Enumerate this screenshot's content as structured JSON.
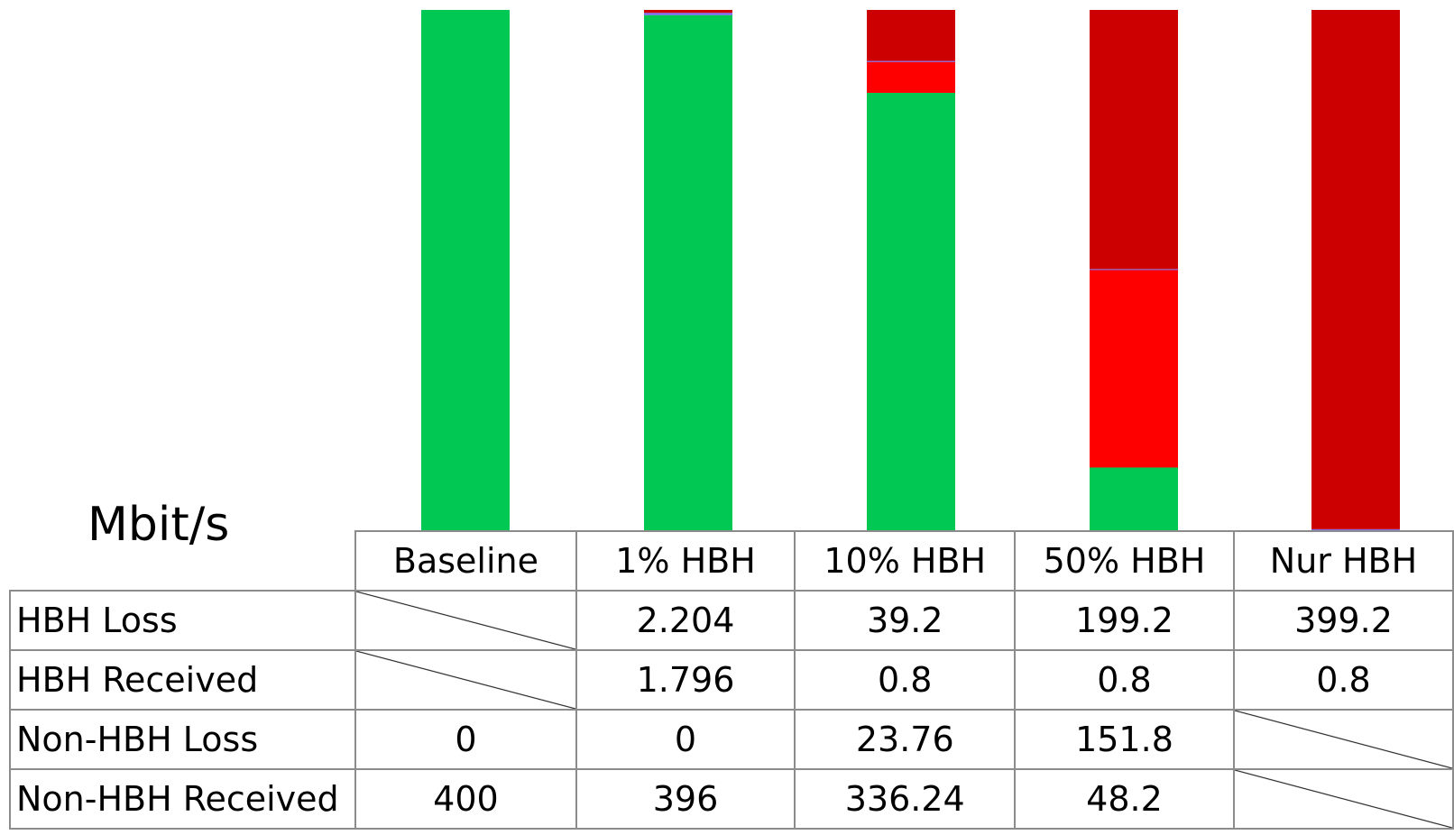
{
  "unit_label": "Mbit/s",
  "chart_data": {
    "type": "bar",
    "stacked": true,
    "normalized": true,
    "categories": [
      "Baseline",
      "1% HBH",
      "10% HBH",
      "50% HBH",
      "Nur HBH"
    ],
    "series": [
      {
        "name": "Non-HBH Received",
        "values": [
          400,
          396,
          336.24,
          48.2,
          0
        ],
        "color": "#00c853"
      },
      {
        "name": "Non-HBH Loss",
        "values": [
          0,
          0,
          23.76,
          151.8,
          0
        ],
        "color": "#2e6fc4"
      },
      {
        "name": "HBH Received",
        "values": [
          0,
          1.796,
          0.8,
          0.8,
          0.8
        ],
        "color": "#9b59b6"
      },
      {
        "name": "HBH Loss",
        "values": [
          0,
          2.204,
          39.2,
          199.2,
          399.2
        ],
        "color": "#cc0000"
      }
    ],
    "segment_colors_observed": {
      "non_hbh_received": "#00c853",
      "non_hbh_loss": "#ff0000",
      "hbh_received": "#7b68ee",
      "hbh_loss": "#cc0000"
    }
  },
  "table": {
    "columns": [
      "Baseline",
      "1% HBH",
      "10% HBH",
      "50% HBH",
      "Nur HBH"
    ],
    "rows": [
      {
        "label": "HBH Loss",
        "cells": [
          "",
          "2.204",
          "39.2",
          "199.2",
          "399.2"
        ]
      },
      {
        "label": "HBH Received",
        "cells": [
          "",
          "1.796",
          "0.8",
          "0.8",
          "0.8"
        ]
      },
      {
        "label": "Non-HBH Loss",
        "cells": [
          "0",
          "0",
          "23.76",
          "151.8",
          ""
        ]
      },
      {
        "label": "Non-HBH Received",
        "cells": [
          "400",
          "396",
          "336.24",
          "48.2",
          ""
        ]
      }
    ]
  }
}
